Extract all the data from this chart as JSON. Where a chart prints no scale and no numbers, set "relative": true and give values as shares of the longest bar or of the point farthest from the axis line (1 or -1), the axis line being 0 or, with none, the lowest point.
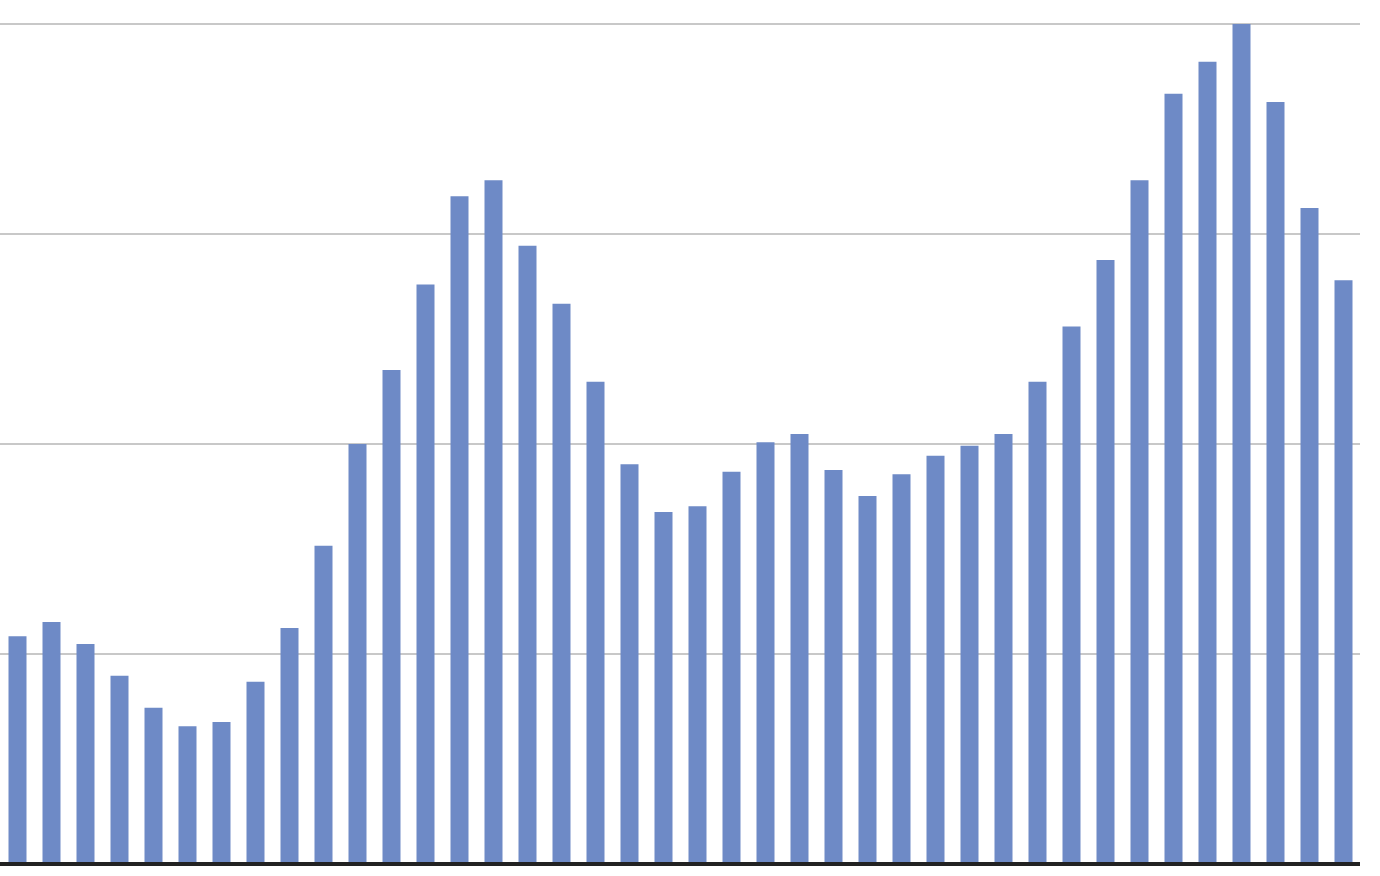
{
  "chart_data": {
    "type": "bar",
    "relative": true,
    "categories": [
      null,
      null,
      null,
      null,
      null,
      null,
      null,
      null,
      null,
      null,
      null,
      null,
      null,
      null,
      null,
      null,
      null,
      null,
      null,
      null,
      null,
      null,
      null,
      null,
      null,
      null,
      null,
      null,
      null,
      null,
      null,
      null,
      null,
      null,
      null,
      null,
      null,
      null,
      null,
      null
    ],
    "values": [
      0.271,
      0.288,
      0.262,
      0.224,
      0.186,
      0.164,
      0.169,
      0.217,
      0.281,
      0.379,
      0.5,
      0.588,
      0.69,
      0.795,
      0.814,
      0.736,
      0.667,
      0.574,
      0.476,
      0.419,
      0.426,
      0.467,
      0.502,
      0.512,
      0.469,
      0.438,
      0.464,
      0.486,
      0.498,
      0.512,
      0.574,
      0.64,
      0.719,
      0.814,
      0.917,
      0.955,
      1,
      0.907,
      0.781,
      0.695
    ],
    "color": "#6e8ac6",
    "grid": "y",
    "tick_labels": false
  }
}
